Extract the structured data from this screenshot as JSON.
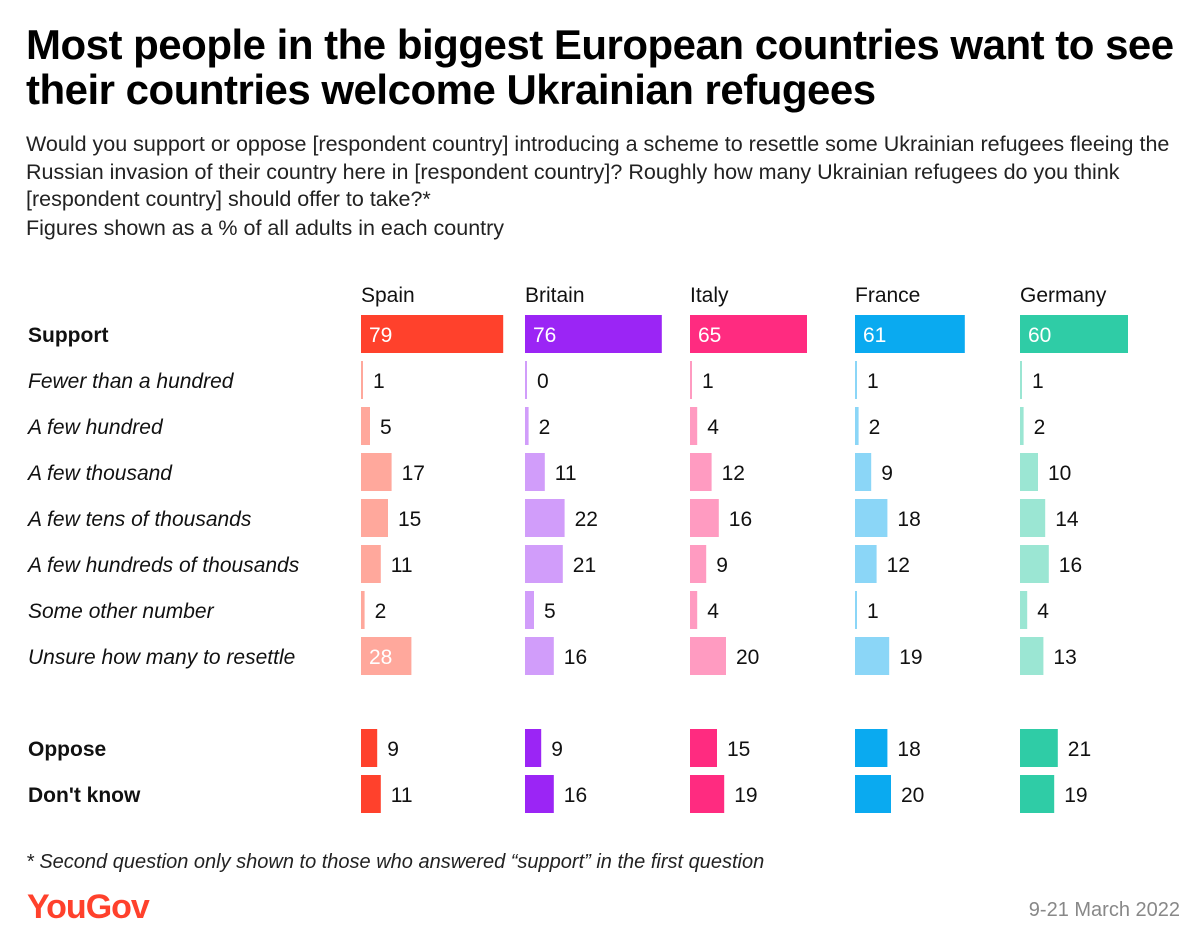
{
  "title": "Most people in the biggest European countries want to see their countries welcome Ukrainian refugees",
  "subtitle": "Would you support or oppose [respondent country] introducing a scheme to resettle some Ukrainian refugees fleeing the Russian invasion of their country here in [respondent country]? Roughly how many Ukrainian refugees do you think [respondent country] should offer to take?*",
  "note": "Figures shown as a % of all adults in each country",
  "footnote": "* Second question only shown to those who answered “support” in the first question",
  "logo": "YouGov",
  "date": "9-21 March 2022",
  "colors": {
    "Spain": {
      "main": "#ff412c",
      "light": "#ffa89c"
    },
    "Britain": {
      "main": "#9b25f5",
      "light": "#d19dfa"
    },
    "Italy": {
      "main": "#ff2b80",
      "light": "#ff9bc1"
    },
    "France": {
      "main": "#0aaaf0",
      "light": "#8bd6f7"
    },
    "Germany": {
      "main": "#2fcca6",
      "light": "#9be6d3"
    }
  },
  "chart_data": {
    "type": "bar",
    "categories": [
      "Support",
      "Fewer than a hundred",
      "A few hundred",
      "A few thousand",
      "A few tens of thousands",
      "A few hundreds of thousands",
      "Some other number",
      "Unsure how many to resettle",
      "Oppose",
      "Don't know"
    ],
    "category_styles": [
      "bold",
      "italic",
      "italic",
      "italic",
      "italic",
      "italic",
      "italic",
      "italic",
      "bold",
      "bold"
    ],
    "series": [
      {
        "name": "Spain",
        "values": [
          79,
          1,
          5,
          17,
          15,
          11,
          2,
          28,
          9,
          11
        ]
      },
      {
        "name": "Britain",
        "values": [
          76,
          0,
          2,
          11,
          22,
          21,
          5,
          16,
          9,
          16
        ]
      },
      {
        "name": "Italy",
        "values": [
          65,
          1,
          4,
          12,
          16,
          9,
          4,
          20,
          15,
          19
        ]
      },
      {
        "name": "France",
        "values": [
          61,
          1,
          2,
          9,
          18,
          12,
          1,
          19,
          18,
          20
        ]
      },
      {
        "name": "Germany",
        "values": [
          60,
          1,
          2,
          10,
          14,
          16,
          4,
          13,
          21,
          19
        ]
      }
    ]
  }
}
